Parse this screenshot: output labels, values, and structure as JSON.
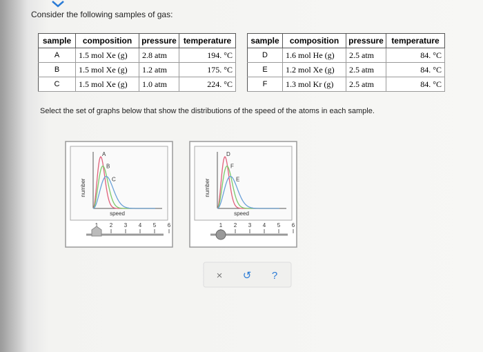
{
  "prompt": "Consider the following samples of gas:",
  "tables": [
    {
      "headers": [
        "sample",
        "composition",
        "pressure",
        "temperature"
      ],
      "rows": [
        [
          "A",
          "1.5 mol Xe (g)",
          "2.8 atm",
          "194. °C"
        ],
        [
          "B",
          "1.5 mol Xe (g)",
          "1.2 atm",
          "175. °C"
        ],
        [
          "C",
          "1.5 mol Xe (g)",
          "1.0 atm",
          "224. °C"
        ]
      ]
    },
    {
      "headers": [
        "sample",
        "composition",
        "pressure",
        "temperature"
      ],
      "rows": [
        [
          "D",
          "1.6 mol He (g)",
          "2.5 atm",
          "84. °C"
        ],
        [
          "E",
          "1.2 mol Xe (g)",
          "2.5 atm",
          "84. °C"
        ],
        [
          "F",
          "1.3 mol Kr (g)",
          "2.5 atm",
          "84. °C"
        ]
      ]
    }
  ],
  "instruction": "Select the set of graphs below that show the distributions of the speed of the atoms in each sample.",
  "graphs": [
    {
      "y_label": "number",
      "x_label": "speed",
      "curve_labels": [
        "A",
        "B",
        "C"
      ],
      "slider_ticks": [
        "1",
        "2",
        "3",
        "4",
        "5",
        "6"
      ]
    },
    {
      "y_label": "number",
      "x_label": "speed",
      "curve_labels": [
        "D",
        "F",
        "E"
      ],
      "slider_ticks": [
        "1",
        "2",
        "3",
        "4",
        "5",
        "6"
      ]
    }
  ],
  "buttons": [
    "×",
    "↺",
    "?"
  ]
}
